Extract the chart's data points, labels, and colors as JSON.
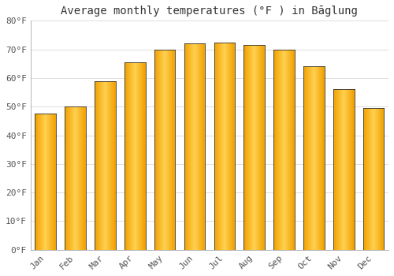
{
  "title": "Average monthly temperatures (°F ) in Bāglung",
  "months": [
    "Jan",
    "Feb",
    "Mar",
    "Apr",
    "May",
    "Jun",
    "Jul",
    "Aug",
    "Sep",
    "Oct",
    "Nov",
    "Dec"
  ],
  "values": [
    47.5,
    50.0,
    59.0,
    65.5,
    70.0,
    72.0,
    72.5,
    71.5,
    70.0,
    64.0,
    56.0,
    49.5
  ],
  "bar_color_left": "#F5A800",
  "bar_color_center": "#FFD050",
  "bar_color_right": "#F5A800",
  "bar_border_color": "#333333",
  "ylim": [
    0,
    80
  ],
  "yticks": [
    0,
    10,
    20,
    30,
    40,
    50,
    60,
    70,
    80
  ],
  "ytick_labels": [
    "0°F",
    "10°F",
    "20°F",
    "30°F",
    "40°F",
    "50°F",
    "60°F",
    "70°F",
    "80°F"
  ],
  "background_color": "#FFFFFF",
  "grid_color": "#DDDDDD",
  "title_fontsize": 10,
  "tick_fontsize": 8,
  "bar_width": 0.7
}
